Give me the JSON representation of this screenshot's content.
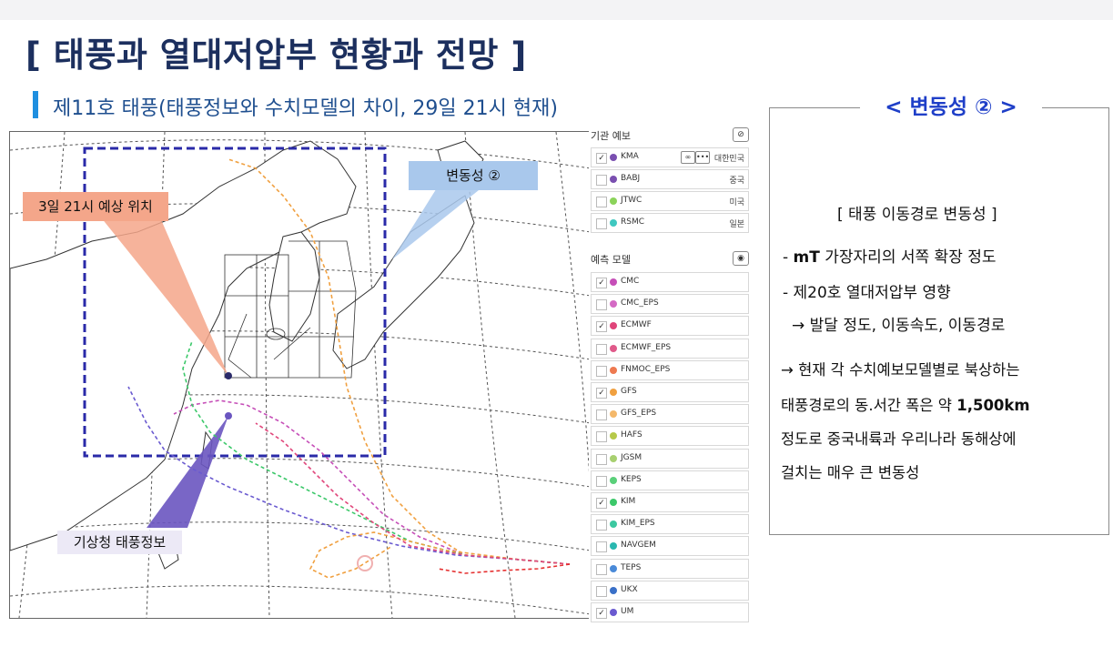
{
  "title": "[ 태풍과 열대저압부 현황과 전망 ]",
  "subtitle": "제11호 태풍(태풍정보와 수치모델의 차이, 29일 21시 현재)",
  "map": {
    "callouts": {
      "position": "3일 21시 예상 위치",
      "variability": "변동성 ②",
      "kma_info": "기상청 태풍정보"
    }
  },
  "panel": {
    "agency_header": "기관 예보",
    "agency_toggle_icon": "eye-slash-icon",
    "agencies": [
      {
        "name": "KMA",
        "country": "대한민국",
        "checked": true,
        "color": "#7a4fb0"
      },
      {
        "name": "BABJ",
        "country": "중국",
        "checked": false,
        "color": "#7a4fb0"
      },
      {
        "name": "JTWC",
        "country": "미국",
        "checked": false,
        "color": "#8bd35a"
      },
      {
        "name": "RSMC",
        "country": "일본",
        "checked": false,
        "color": "#3fc8c0"
      }
    ],
    "model_header": "예측 모델",
    "model_toggle_icon": "eye-icon",
    "models": [
      {
        "name": "CMC",
        "checked": true,
        "color": "#c64fb8"
      },
      {
        "name": "CMC_EPS",
        "checked": false,
        "color": "#d46ac4"
      },
      {
        "name": "ECMWF",
        "checked": true,
        "color": "#e0457a"
      },
      {
        "name": "ECMWF_EPS",
        "checked": false,
        "color": "#e05a8a"
      },
      {
        "name": "FNMOC_EPS",
        "checked": false,
        "color": "#ee7a50"
      },
      {
        "name": "GFS",
        "checked": true,
        "color": "#f0a040"
      },
      {
        "name": "GFS_EPS",
        "checked": false,
        "color": "#f4b86a"
      },
      {
        "name": "HAFS",
        "checked": false,
        "color": "#b6c94a"
      },
      {
        "name": "JGSM",
        "checked": false,
        "color": "#a8d070"
      },
      {
        "name": "KEPS",
        "checked": false,
        "color": "#5ad07a"
      },
      {
        "name": "KIM",
        "checked": true,
        "color": "#3cc86a"
      },
      {
        "name": "KIM_EPS",
        "checked": false,
        "color": "#3cc8a0"
      },
      {
        "name": "NAVGEM",
        "checked": false,
        "color": "#2ab8b0"
      },
      {
        "name": "TEPS",
        "checked": false,
        "color": "#4a8ad8"
      },
      {
        "name": "UKX",
        "checked": false,
        "color": "#3a70c8"
      },
      {
        "name": "UM",
        "checked": true,
        "color": "#6a5ad0"
      }
    ]
  },
  "summary": {
    "title": "< 변동성 ② >",
    "subtitle": "[ 태풍 이동경로 변동성 ]",
    "line1_prefix": "- ",
    "line1_bold": "mT",
    "line1_rest": " 가장자리의 서쪽 확장 정도",
    "line2": "- 제20호 열대저압부 영향",
    "line3": "→ 발달 정도, 이동속도, 이동경로",
    "para1": "→ 현재 각 수치예보모델별로 북상하는",
    "para2_prefix": "태풍경로의 동.서간 폭은 약 ",
    "para2_bold": "1,500km",
    "para3": "정도로 중국내륙과 우리나라 동해상에",
    "para4": "걸치는 매우 큰 변동성"
  }
}
